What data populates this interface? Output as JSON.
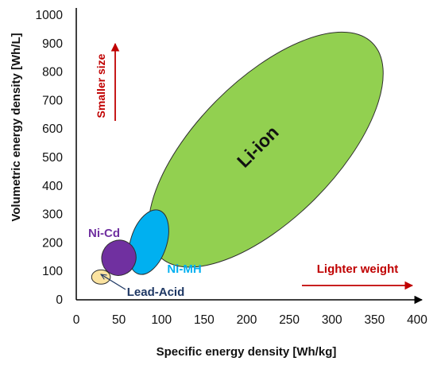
{
  "chart_data": {
    "type": "scatter",
    "title": "",
    "xlabel": "Specific energy density [Wh/kg]",
    "ylabel": "Volumetric energy density [Wh/L]",
    "xlim": [
      0,
      400
    ],
    "ylim": [
      0,
      1000
    ],
    "xticks": [
      "0",
      "50",
      "100",
      "150",
      "200",
      "250",
      "300",
      "350",
      "400"
    ],
    "yticks": [
      "0",
      "100",
      "200",
      "300",
      "400",
      "500",
      "600",
      "700",
      "800",
      "900",
      "1000"
    ],
    "grid": false,
    "regions": [
      {
        "name": "Lead-Acid",
        "x_range": [
          18,
          40
        ],
        "y_range": [
          55,
          105
        ],
        "color": "#FBE3A0"
      },
      {
        "name": "Ni-Cd",
        "x_range": [
          30,
          70
        ],
        "y_range": [
          85,
          210
        ],
        "color": "#7030A0"
      },
      {
        "name": "Ni-MH",
        "x_range": [
          62,
          108
        ],
        "y_range": [
          85,
          320
        ],
        "color": "#00B0F0"
      },
      {
        "name": "Li-ion",
        "x_range": [
          95,
          350
        ],
        "y_range": [
          145,
          910
        ],
        "color": "#92D050"
      }
    ],
    "annotations": {
      "smaller_size": "Smaller size",
      "lighter_weight": "Lighter weight"
    }
  }
}
